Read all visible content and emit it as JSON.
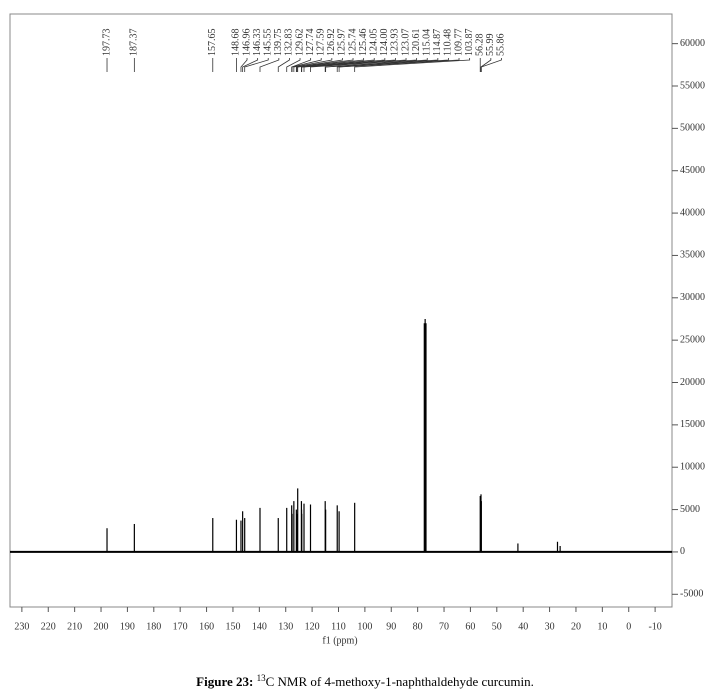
{
  "chart_data": {
    "type": "spectrum",
    "x_label": "f1 (ppm)",
    "xlim": [
      234.5,
      -16.4
    ],
    "xticks": [
      230,
      220,
      210,
      200,
      190,
      180,
      170,
      160,
      150,
      140,
      130,
      120,
      110,
      100,
      90,
      80,
      70,
      60,
      50,
      40,
      30,
      20,
      10,
      0,
      -10
    ],
    "ylim": [
      -6500,
      63500
    ],
    "yticks": [
      60000,
      55000,
      50000,
      45000,
      40000,
      35000,
      30000,
      25000,
      20000,
      15000,
      10000,
      5000,
      0,
      -5000
    ],
    "color": "#000000",
    "series": [
      {
        "x": [
          197.73,
          187.37,
          157.65,
          148.68,
          146.96,
          146.33,
          145.55,
          139.75,
          132.83,
          129.62,
          127.74,
          127.59,
          126.92,
          125.97,
          125.74,
          125.46,
          124.05,
          124.0,
          123.93,
          123.07,
          120.61,
          115.04,
          114.87,
          110.48,
          109.77,
          103.87,
          56.28,
          55.99,
          55.86
        ],
        "x_labels": [
          "197.73",
          "187.37",
          "157.65",
          "148.68",
          "146.96",
          "146.33",
          "145.55",
          "139.75",
          "132.83",
          "129.62",
          "127.74",
          "127.59",
          "126.92",
          "125.97",
          "125.74",
          "125.46",
          "124.05",
          "124.00",
          "123.93",
          "123.07",
          "120.61",
          "115.04",
          "114.87",
          "110.48",
          "109.77",
          "103.87",
          "56.28",
          "55.99",
          "55.86"
        ],
        "values": [
          2800,
          3300,
          4000,
          3800,
          3700,
          4800,
          4000,
          5200,
          4000,
          5200,
          5500,
          4500,
          6000,
          5000,
          4500,
          7500,
          6000,
          5000,
          4500,
          5700,
          5600,
          6000,
          5000,
          5500,
          4800,
          5800,
          6600,
          6800,
          6000
        ]
      },
      {
        "x": [
          77.48,
          77.16,
          76.84,
          42.0,
          27.0,
          26.0
        ],
        "values": [
          27000,
          27500,
          27000,
          1000,
          1200,
          700
        ]
      }
    ]
  },
  "caption": {
    "label": "Figure 23:",
    "isotope": "13",
    "text": "C NMR of 4-methoxy-1-naphthaldehyde curcumin."
  }
}
